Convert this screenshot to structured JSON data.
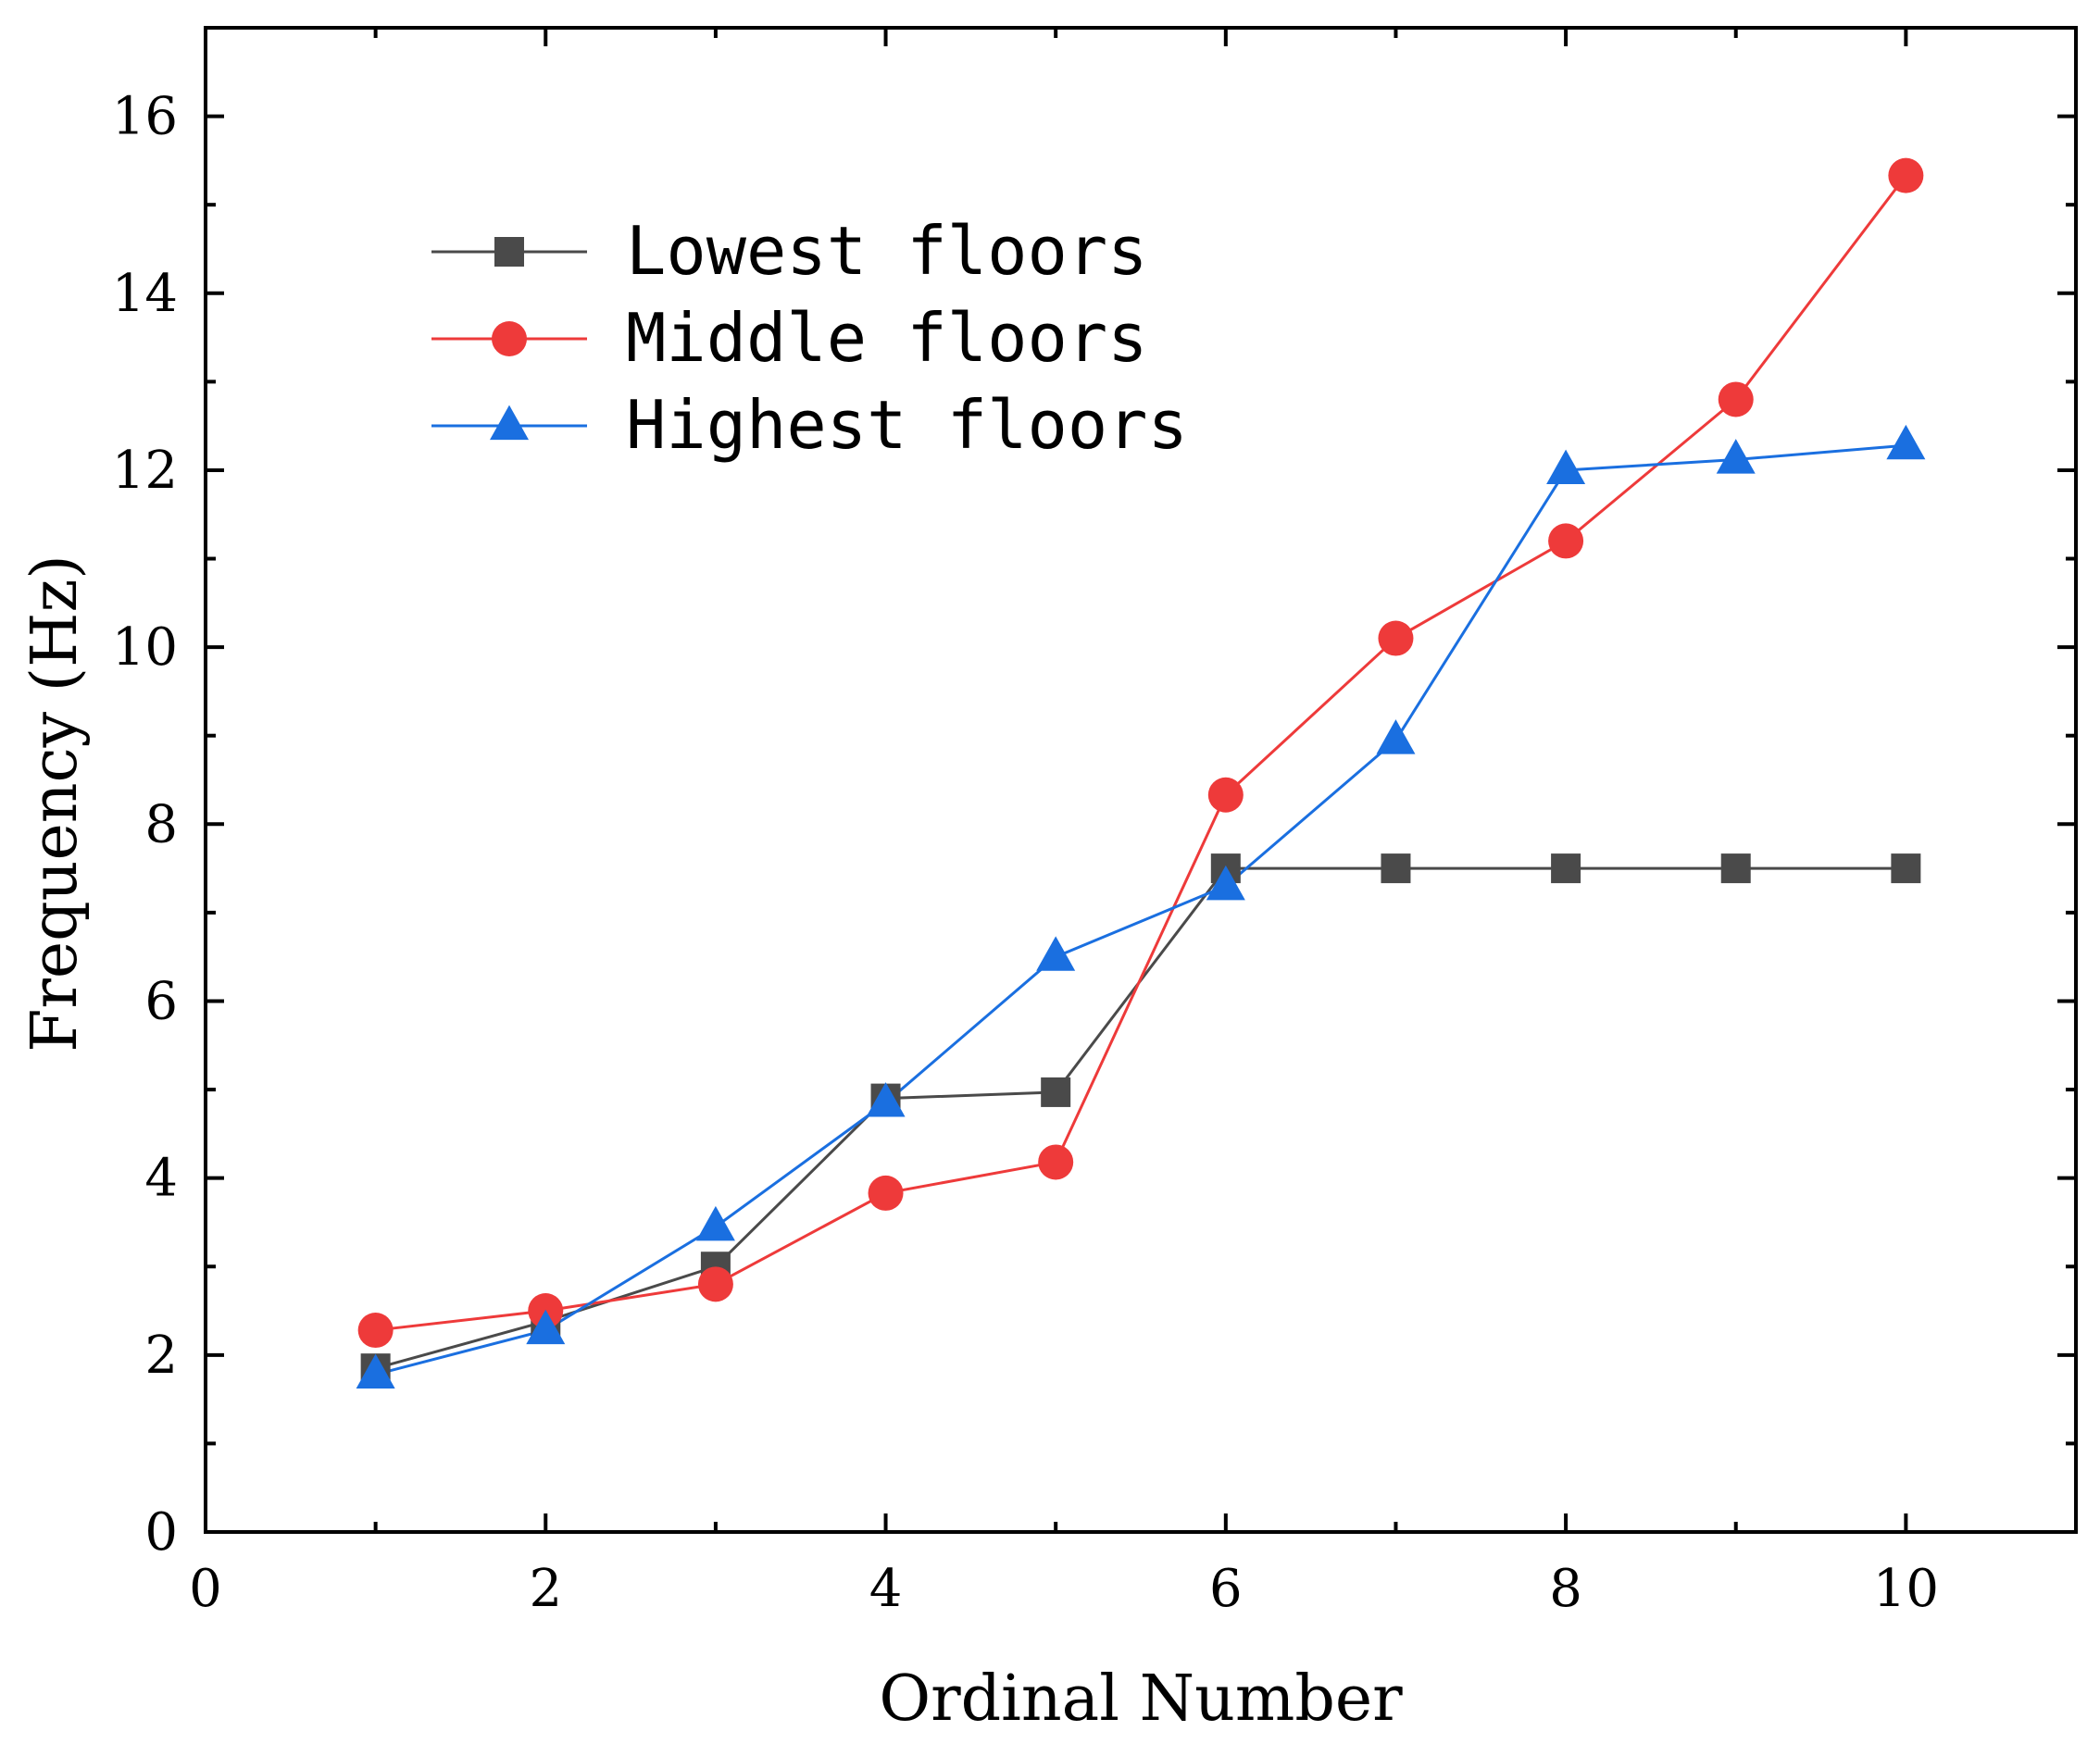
{
  "chart_data": {
    "type": "line",
    "xlabel": "Ordinal Number",
    "ylabel": "Frequency (Hz)",
    "xlim": [
      0,
      11
    ],
    "ylim": [
      0,
      17
    ],
    "xticks": [
      0,
      2,
      4,
      6,
      8,
      10
    ],
    "yticks": [
      0,
      2,
      4,
      6,
      8,
      10,
      12,
      14,
      16
    ],
    "x": [
      1,
      2,
      3,
      4,
      5,
      6,
      7,
      8,
      9,
      10
    ],
    "grid": false,
    "legend_position": "top-left",
    "series": [
      {
        "name": "Lowest floors",
        "marker": "square",
        "color": "#4a4a4a",
        "values": [
          1.85,
          2.38,
          3.0,
          4.9,
          4.97,
          7.5,
          7.5,
          7.5,
          7.5,
          7.5
        ]
      },
      {
        "name": "Middle floors",
        "marker": "circle",
        "color": "#ee3a3a",
        "values": [
          2.28,
          2.5,
          2.8,
          3.83,
          4.18,
          8.33,
          10.1,
          11.2,
          12.8,
          15.33
        ]
      },
      {
        "name": "Highest floors",
        "marker": "triangle",
        "color": "#1a6fe0",
        "values": [
          1.78,
          2.28,
          3.45,
          4.85,
          6.5,
          7.3,
          8.95,
          12.0,
          12.12,
          12.28
        ]
      }
    ]
  }
}
